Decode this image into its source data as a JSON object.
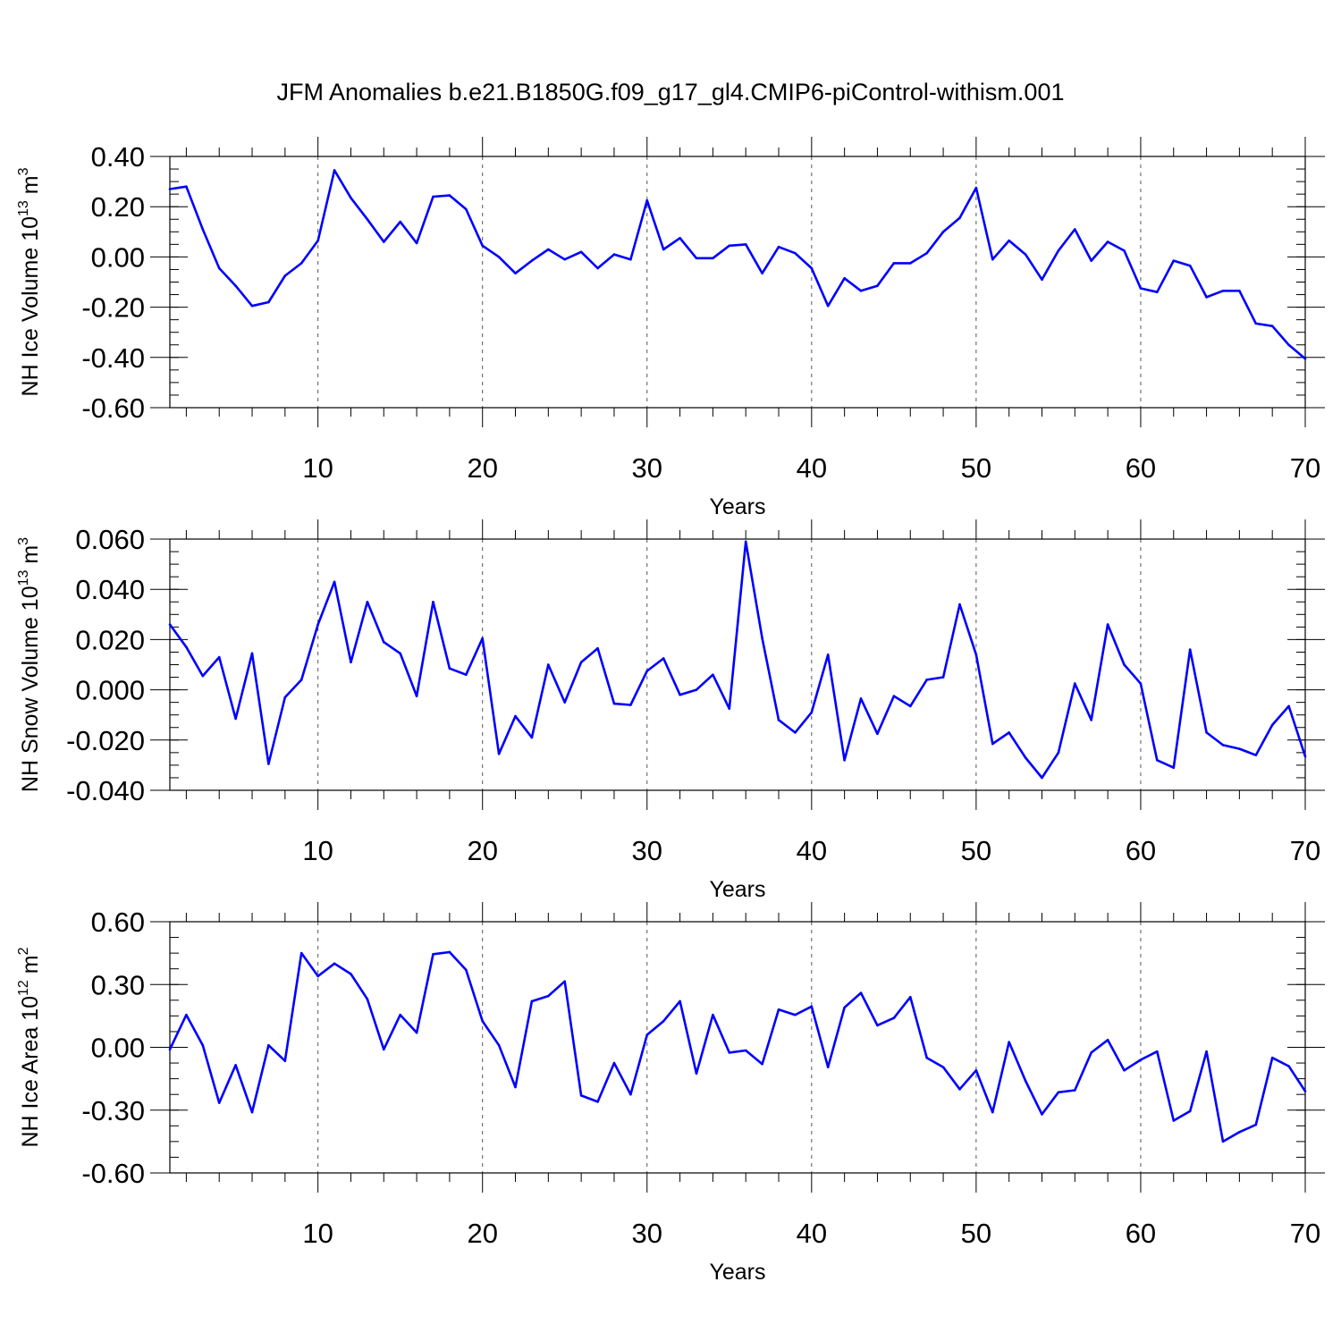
{
  "title": "JFM Anomalies b.e21.B1850G.f09_g17_gl4.CMIP6-piControl-withism.001",
  "line_color": "#0000ff",
  "chart_data": [
    {
      "type": "line",
      "ylabel_main": "NH Ice Volume 10",
      "ylabel_exp": "13",
      "ylabel_unit": " m",
      "ylabel_unit_exp": "3",
      "xlabel": "Years",
      "xlim": [
        1,
        70
      ],
      "ylim": [
        -0.6,
        0.4
      ],
      "yticks": [
        -0.6,
        -0.4,
        -0.2,
        0.0,
        0.2,
        0.4
      ],
      "ytick_labels": [
        "-0.60",
        "-0.40",
        "-0.20",
        "0.00",
        "0.20",
        "0.40"
      ],
      "xticks": [
        10,
        20,
        30,
        40,
        50,
        60,
        70
      ],
      "xtick_labels": [
        "10",
        "20",
        "30",
        "40",
        "50",
        "60",
        "70"
      ],
      "minor_y_step": 0.05,
      "grid": "dashed vertical at x ticks",
      "x": [
        1,
        2,
        3,
        4,
        5,
        6,
        7,
        8,
        9,
        10,
        11,
        12,
        13,
        14,
        15,
        16,
        17,
        18,
        19,
        20,
        21,
        22,
        23,
        24,
        25,
        26,
        27,
        28,
        29,
        30,
        31,
        32,
        33,
        34,
        35,
        36,
        37,
        38,
        39,
        40,
        41,
        42,
        43,
        44,
        45,
        46,
        47,
        48,
        49,
        50,
        51,
        52,
        53,
        54,
        55,
        56,
        57,
        58,
        59,
        60,
        61,
        62,
        63,
        64,
        65,
        66,
        67,
        68,
        69,
        70
      ],
      "values": [
        0.27,
        0.28,
        0.11,
        -0.045,
        -0.115,
        -0.195,
        -0.18,
        -0.075,
        -0.025,
        0.065,
        0.345,
        0.235,
        0.15,
        0.06,
        0.14,
        0.055,
        0.24,
        0.245,
        0.19,
        0.045,
        0.0,
        -0.065,
        -0.015,
        0.03,
        -0.01,
        0.02,
        -0.045,
        0.01,
        -0.01,
        0.225,
        0.03,
        0.075,
        -0.005,
        -0.005,
        0.045,
        0.05,
        -0.065,
        0.04,
        0.015,
        -0.045,
        -0.195,
        -0.085,
        -0.135,
        -0.115,
        -0.025,
        -0.025,
        0.015,
        0.1,
        0.155,
        0.275,
        -0.01,
        0.065,
        0.01,
        -0.09,
        0.025,
        0.11,
        -0.015,
        0.06,
        0.025,
        -0.125,
        -0.14,
        -0.015,
        -0.035,
        -0.16,
        -0.135,
        -0.135,
        -0.265,
        -0.275,
        -0.35,
        -0.405
      ]
    },
    {
      "type": "line",
      "ylabel_main": "NH Snow Volume 10",
      "ylabel_exp": "13",
      "ylabel_unit": " m",
      "ylabel_unit_exp": "3",
      "xlabel": "Years",
      "xlim": [
        1,
        70
      ],
      "ylim": [
        -0.04,
        0.06
      ],
      "yticks": [
        -0.04,
        -0.02,
        0.0,
        0.02,
        0.04,
        0.06
      ],
      "ytick_labels": [
        "-0.040",
        "-0.020",
        "0.000",
        "0.020",
        "0.040",
        "0.060"
      ],
      "xticks": [
        10,
        20,
        30,
        40,
        50,
        60,
        70
      ],
      "xtick_labels": [
        "10",
        "20",
        "30",
        "40",
        "50",
        "60",
        "70"
      ],
      "minor_y_step": 0.005,
      "grid": "dashed vertical at x ticks",
      "x": [
        1,
        2,
        3,
        4,
        5,
        6,
        7,
        8,
        9,
        10,
        11,
        12,
        13,
        14,
        15,
        16,
        17,
        18,
        19,
        20,
        21,
        22,
        23,
        24,
        25,
        26,
        27,
        28,
        29,
        30,
        31,
        32,
        33,
        34,
        35,
        36,
        37,
        38,
        39,
        40,
        41,
        42,
        43,
        44,
        45,
        46,
        47,
        48,
        49,
        50,
        51,
        52,
        53,
        54,
        55,
        56,
        57,
        58,
        59,
        60,
        61,
        62,
        63,
        64,
        65,
        66,
        67,
        68,
        69,
        70
      ],
      "values": [
        0.026,
        0.017,
        0.0055,
        0.013,
        -0.0115,
        0.0145,
        -0.0295,
        -0.003,
        0.004,
        0.026,
        0.043,
        0.011,
        0.035,
        0.019,
        0.0145,
        -0.0025,
        0.035,
        0.0085,
        0.006,
        0.0205,
        -0.0255,
        -0.0105,
        -0.019,
        0.01,
        -0.005,
        0.011,
        0.0165,
        -0.0055,
        -0.006,
        0.0075,
        0.0125,
        -0.002,
        0.0,
        0.006,
        -0.0075,
        0.059,
        0.0205,
        -0.012,
        -0.017,
        -0.009,
        0.014,
        -0.028,
        -0.0035,
        -0.0175,
        -0.0025,
        -0.0065,
        0.004,
        0.005,
        0.034,
        0.014,
        -0.0215,
        -0.017,
        -0.027,
        -0.035,
        -0.025,
        0.0025,
        -0.012,
        0.026,
        0.01,
        0.0025,
        -0.028,
        -0.031,
        0.016,
        -0.017,
        -0.022,
        -0.0235,
        -0.026,
        -0.014,
        -0.0065,
        -0.0265
      ]
    },
    {
      "type": "line",
      "ylabel_main": "NH Ice Area 10",
      "ylabel_exp": "12",
      "ylabel_unit": " m",
      "ylabel_unit_exp": "2",
      "xlabel": "Years",
      "xlim": [
        1,
        70
      ],
      "ylim": [
        -0.6,
        0.6
      ],
      "yticks": [
        -0.6,
        -0.3,
        0.0,
        0.3,
        0.6
      ],
      "ytick_labels": [
        "-0.60",
        "-0.30",
        "0.00",
        "0.30",
        "0.60"
      ],
      "xticks": [
        10,
        20,
        30,
        40,
        50,
        60,
        70
      ],
      "xtick_labels": [
        "10",
        "20",
        "30",
        "40",
        "50",
        "60",
        "70"
      ],
      "minor_y_step": 0.075,
      "grid": "dashed vertical at x ticks",
      "x": [
        1,
        2,
        3,
        4,
        5,
        6,
        7,
        8,
        9,
        10,
        11,
        12,
        13,
        14,
        15,
        16,
        17,
        18,
        19,
        20,
        21,
        22,
        23,
        24,
        25,
        26,
        27,
        28,
        29,
        30,
        31,
        32,
        33,
        34,
        35,
        36,
        37,
        38,
        39,
        40,
        41,
        42,
        43,
        44,
        45,
        46,
        47,
        48,
        49,
        50,
        51,
        52,
        53,
        54,
        55,
        56,
        57,
        58,
        59,
        60,
        61,
        62,
        63,
        64,
        65,
        66,
        67,
        68,
        69,
        70
      ],
      "values": [
        -0.01,
        0.155,
        0.01,
        -0.265,
        -0.085,
        -0.31,
        0.01,
        -0.065,
        0.45,
        0.34,
        0.4,
        0.35,
        0.23,
        -0.01,
        0.155,
        0.07,
        0.445,
        0.455,
        0.37,
        0.125,
        0.01,
        -0.19,
        0.22,
        0.245,
        0.315,
        -0.23,
        -0.26,
        -0.075,
        -0.225,
        0.06,
        0.125,
        0.22,
        -0.125,
        0.155,
        -0.025,
        -0.015,
        -0.08,
        0.18,
        0.155,
        0.195,
        -0.095,
        0.19,
        0.26,
        0.105,
        0.14,
        0.24,
        -0.05,
        -0.095,
        -0.2,
        -0.11,
        -0.31,
        0.025,
        -0.16,
        -0.32,
        -0.215,
        -0.205,
        -0.025,
        0.035,
        -0.11,
        -0.06,
        -0.02,
        -0.35,
        -0.305,
        -0.02,
        -0.45,
        -0.405,
        -0.37,
        -0.05,
        -0.09,
        -0.21
      ]
    }
  ]
}
